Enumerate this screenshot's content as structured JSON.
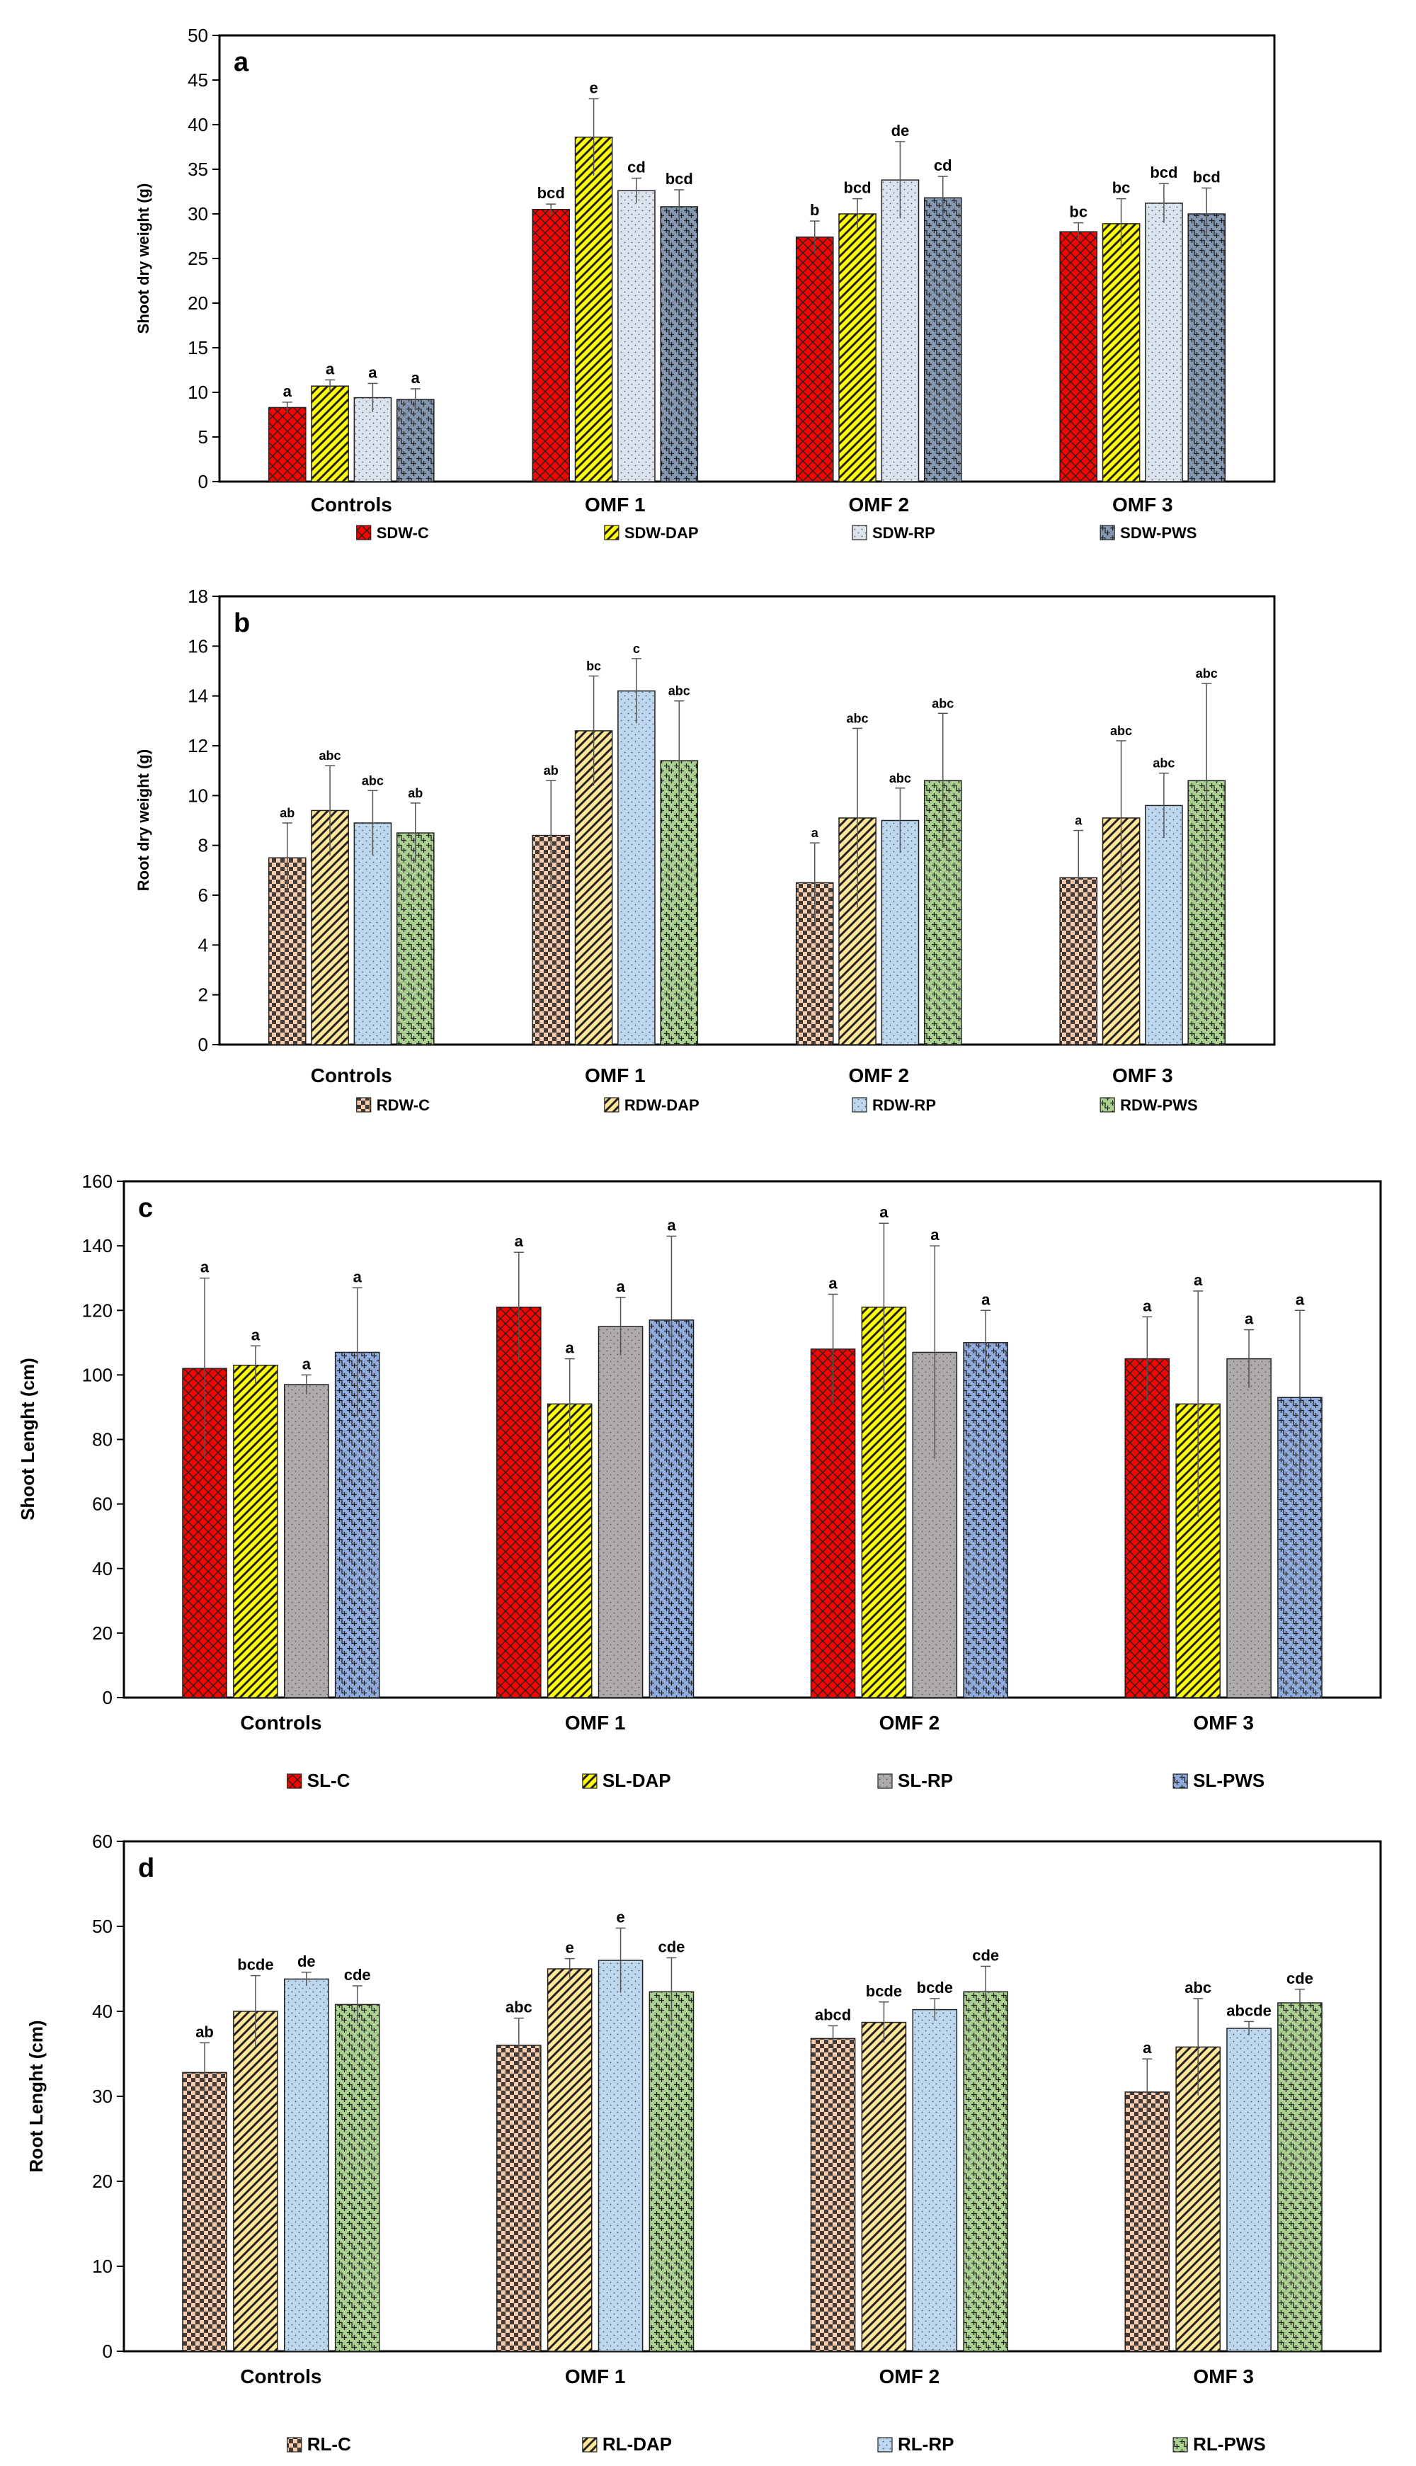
{
  "chart_data": [
    {
      "panel": "a",
      "type": "bar",
      "title": "",
      "xlabel": "",
      "ylabel": "Shoot dry weight (g)",
      "ylim": [
        0,
        50
      ],
      "yticks": [
        0,
        5,
        10,
        15,
        20,
        25,
        30,
        35,
        40,
        45,
        50
      ],
      "categories": [
        "Controls",
        "OMF 1",
        "OMF 2",
        "OMF 3"
      ],
      "legend_position": "bottom",
      "series": [
        {
          "name": "SDW-C",
          "color": "#ff0000",
          "pattern": "brick",
          "values": [
            8.3,
            30.5,
            27.4,
            28.0
          ],
          "errors": [
            0.6,
            0.6,
            1.8,
            1.0
          ],
          "letters": [
            "a",
            "bcd",
            "b",
            "bc"
          ]
        },
        {
          "name": "SDW-DAP",
          "color": "#ffff00",
          "pattern": "diag",
          "values": [
            10.7,
            38.6,
            30.0,
            28.9
          ],
          "errors": [
            0.7,
            4.3,
            1.7,
            2.8
          ],
          "letters": [
            "a",
            "e",
            "bcd",
            "bc"
          ]
        },
        {
          "name": "SDW-RP",
          "color": "#dbe3ef",
          "pattern": "dots",
          "values": [
            9.4,
            32.6,
            33.8,
            31.2
          ],
          "errors": [
            1.6,
            1.4,
            4.3,
            2.2
          ],
          "letters": [
            "a",
            "cd",
            "de",
            "bcd"
          ]
        },
        {
          "name": "SDW-PWS",
          "color": "#8497b0",
          "pattern": "weave",
          "values": [
            9.2,
            30.8,
            31.8,
            30.0
          ],
          "errors": [
            1.2,
            1.9,
            2.4,
            2.9
          ],
          "letters": [
            "a",
            "bcd",
            "cd",
            "bcd"
          ]
        }
      ]
    },
    {
      "panel": "b",
      "type": "bar",
      "title": "",
      "xlabel": "",
      "ylabel": "Root dry weight (g)",
      "ylim": [
        0,
        18
      ],
      "yticks": [
        0,
        2,
        4,
        6,
        8,
        10,
        12,
        14,
        16,
        18
      ],
      "categories": [
        "Controls",
        "OMF 1",
        "OMF 2",
        "OMF 3"
      ],
      "legend_position": "bottom",
      "series": [
        {
          "name": "RDW-C",
          "color": "#f8cbad",
          "pattern": "checker",
          "values": [
            7.5,
            8.4,
            6.5,
            6.7
          ],
          "errors": [
            1.4,
            2.2,
            1.6,
            1.9
          ],
          "letters": [
            "ab",
            "ab",
            "a",
            "a"
          ]
        },
        {
          "name": "RDW-DAP",
          "color": "#ffe699",
          "pattern": "diag",
          "values": [
            9.4,
            12.6,
            9.1,
            9.1
          ],
          "errors": [
            1.8,
            2.2,
            3.6,
            3.1
          ],
          "letters": [
            "abc",
            "bc",
            "abc",
            "abc"
          ]
        },
        {
          "name": "RDW-RP",
          "color": "#bdd7ee",
          "pattern": "dots",
          "values": [
            8.9,
            14.2,
            9.0,
            9.6
          ],
          "errors": [
            1.3,
            1.3,
            1.3,
            1.3
          ],
          "letters": [
            "abc",
            "c",
            "abc",
            "abc"
          ]
        },
        {
          "name": "RDW-PWS",
          "color": "#a9d08e",
          "pattern": "weave",
          "values": [
            8.5,
            11.4,
            10.6,
            10.6
          ],
          "errors": [
            1.2,
            2.4,
            2.7,
            3.9
          ],
          "letters": [
            "ab",
            "abc",
            "abc",
            "abc"
          ]
        }
      ]
    },
    {
      "panel": "c",
      "type": "bar",
      "title": "",
      "xlabel": "",
      "ylabel": "Shoot Lenght (cm)",
      "ylim": [
        0,
        160
      ],
      "yticks": [
        0,
        20,
        40,
        60,
        80,
        100,
        120,
        140,
        160
      ],
      "categories": [
        "Controls",
        "OMF 1",
        "OMF 2",
        "OMF 3"
      ],
      "legend_position": "bottom",
      "series": [
        {
          "name": "SL-C",
          "color": "#ff0000",
          "pattern": "brick",
          "values": [
            102,
            121,
            108,
            105
          ],
          "errors": [
            28,
            17,
            17,
            13
          ],
          "letters": [
            "a",
            "a",
            "a",
            "a"
          ]
        },
        {
          "name": "SL-DAP",
          "color": "#ffff00",
          "pattern": "diag",
          "values": [
            103,
            91,
            121,
            91
          ],
          "errors": [
            6,
            14,
            26,
            35
          ],
          "letters": [
            "a",
            "a",
            "a",
            "a"
          ]
        },
        {
          "name": "SL-RP",
          "color": "#aeaaaa",
          "pattern": "dots",
          "values": [
            97,
            115,
            107,
            105
          ],
          "errors": [
            3,
            9,
            33,
            9
          ],
          "letters": [
            "a",
            "a",
            "a",
            "a"
          ]
        },
        {
          "name": "SL-PWS",
          "color": "#8faadc",
          "pattern": "weave",
          "values": [
            107,
            117,
            110,
            93
          ],
          "errors": [
            20,
            26,
            10,
            27
          ],
          "letters": [
            "a",
            "a",
            "a",
            "a"
          ]
        }
      ]
    },
    {
      "panel": "d",
      "type": "bar",
      "title": "",
      "xlabel": "",
      "ylabel": "Root Lenght (cm)",
      "ylim": [
        0,
        60
      ],
      "yticks": [
        0,
        10,
        20,
        30,
        40,
        50,
        60
      ],
      "categories": [
        "Controls",
        "OMF 1",
        "OMF 2",
        "OMF 3"
      ],
      "legend_position": "bottom",
      "series": [
        {
          "name": "RL-C",
          "color": "#f8cbad",
          "pattern": "checker",
          "values": [
            32.8,
            36.0,
            36.8,
            30.5
          ],
          "errors": [
            3.5,
            3.2,
            1.5,
            3.9
          ],
          "letters": [
            "ab",
            "abc",
            "abcd",
            "a"
          ]
        },
        {
          "name": "RL-DAP",
          "color": "#ffe699",
          "pattern": "diag",
          "values": [
            40.0,
            45.0,
            38.7,
            35.8
          ],
          "errors": [
            4.2,
            1.2,
            2.4,
            5.7
          ],
          "letters": [
            "bcde",
            "e",
            "bcde",
            "abc"
          ]
        },
        {
          "name": "RL-RP",
          "color": "#bdd7ee",
          "pattern": "dots",
          "values": [
            43.8,
            46.0,
            40.2,
            38.0
          ],
          "errors": [
            0.8,
            3.8,
            1.3,
            0.8
          ],
          "letters": [
            "de",
            "e",
            "bcde",
            "abcde"
          ]
        },
        {
          "name": "RL-PWS",
          "color": "#a9d08e",
          "pattern": "weave",
          "values": [
            40.8,
            42.3,
            42.3,
            41.0
          ],
          "errors": [
            2.2,
            4.0,
            3.0,
            1.6
          ],
          "letters": [
            "cde",
            "cde",
            "cde",
            "cde"
          ]
        }
      ]
    }
  ]
}
